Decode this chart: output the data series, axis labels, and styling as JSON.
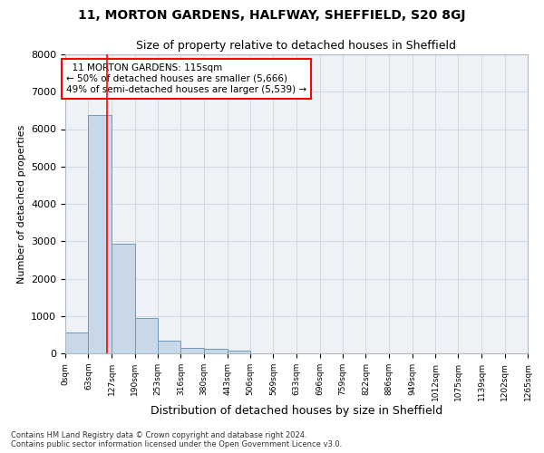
{
  "title1": "11, MORTON GARDENS, HALFWAY, SHEFFIELD, S20 8GJ",
  "title2": "Size of property relative to detached houses in Sheffield",
  "xlabel": "Distribution of detached houses by size in Sheffield",
  "ylabel": "Number of detached properties",
  "footnote1": "Contains HM Land Registry data © Crown copyright and database right 2024.",
  "footnote2": "Contains public sector information licensed under the Open Government Licence v3.0.",
  "annotation_line1": "  11 MORTON GARDENS: 115sqm",
  "annotation_line2": "← 50% of detached houses are smaller (5,666)",
  "annotation_line3": "49% of semi-detached houses are larger (5,539) →",
  "property_size": 115,
  "bin_edges": [
    0,
    63,
    127,
    190,
    253,
    316,
    380,
    443,
    506,
    569,
    633,
    696,
    759,
    822,
    886,
    949,
    1012,
    1075,
    1139,
    1202,
    1265
  ],
  "bar_heights": [
    560,
    6380,
    2940,
    950,
    330,
    150,
    130,
    70,
    0,
    0,
    0,
    0,
    0,
    0,
    0,
    0,
    0,
    0,
    0,
    0
  ],
  "bar_color": "#c8d8e8",
  "bar_edge_color": "#7099b8",
  "red_line_x": 115,
  "ylim": [
    0,
    8000
  ],
  "yticks": [
    0,
    1000,
    2000,
    3000,
    4000,
    5000,
    6000,
    7000,
    8000
  ],
  "bg_color": "#eef2f7",
  "grid_color": "#d0d8e0"
}
